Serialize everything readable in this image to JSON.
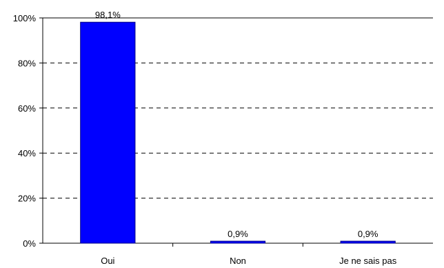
{
  "chart_data": {
    "type": "bar",
    "title": "",
    "xlabel": "",
    "ylabel": "",
    "categories": [
      "Oui",
      "Non",
      "Je ne sais pas"
    ],
    "values": [
      98.1,
      0.9,
      0.9
    ],
    "data_labels": [
      "98,1%",
      "0,9%",
      "0,9%"
    ],
    "ylim": [
      0,
      100
    ],
    "y_ticks": [
      0,
      20,
      40,
      60,
      80,
      100
    ],
    "y_tick_labels": [
      "0%",
      "20%",
      "40%",
      "60%",
      "80%",
      "100%"
    ],
    "grid": "dashed horizontal",
    "legend": "none",
    "bar_color": "#0000ff",
    "bar_edge_color": "#000080"
  }
}
